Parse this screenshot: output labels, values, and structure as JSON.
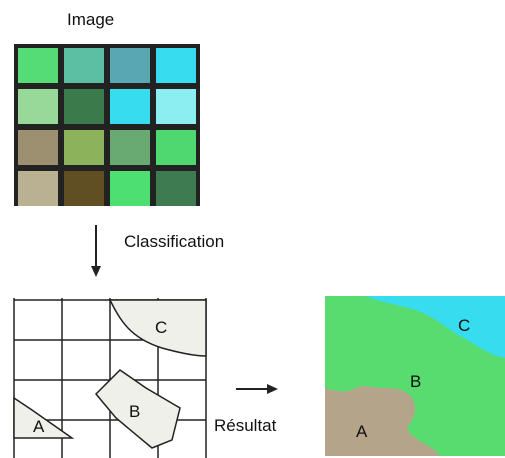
{
  "labels": {
    "image_title": "Image",
    "classification": "Classification",
    "result": "Résultat"
  },
  "image_grid": {
    "rows": 4,
    "cols": 4,
    "colors": [
      [
        "#56dc76",
        "#5cbfa3",
        "#5aa7b4",
        "#37dcee"
      ],
      [
        "#98d899",
        "#3b7a4b",
        "#37dcee",
        "#8deef2"
      ],
      [
        "#9c9070",
        "#8cb35c",
        "#68aa72",
        "#4fd86f"
      ],
      [
        "#b9b192",
        "#5f4f22",
        "#4ddf72",
        "#3e7b50"
      ]
    ]
  },
  "classified_regions": {
    "a": "A",
    "b": "B",
    "c": "C"
  },
  "result_map": {
    "labels": {
      "a": "A",
      "b": "B",
      "c": "C"
    },
    "colors": {
      "background": "#58dc70",
      "water": "#37dcee",
      "soil": "#b4a58a"
    }
  }
}
